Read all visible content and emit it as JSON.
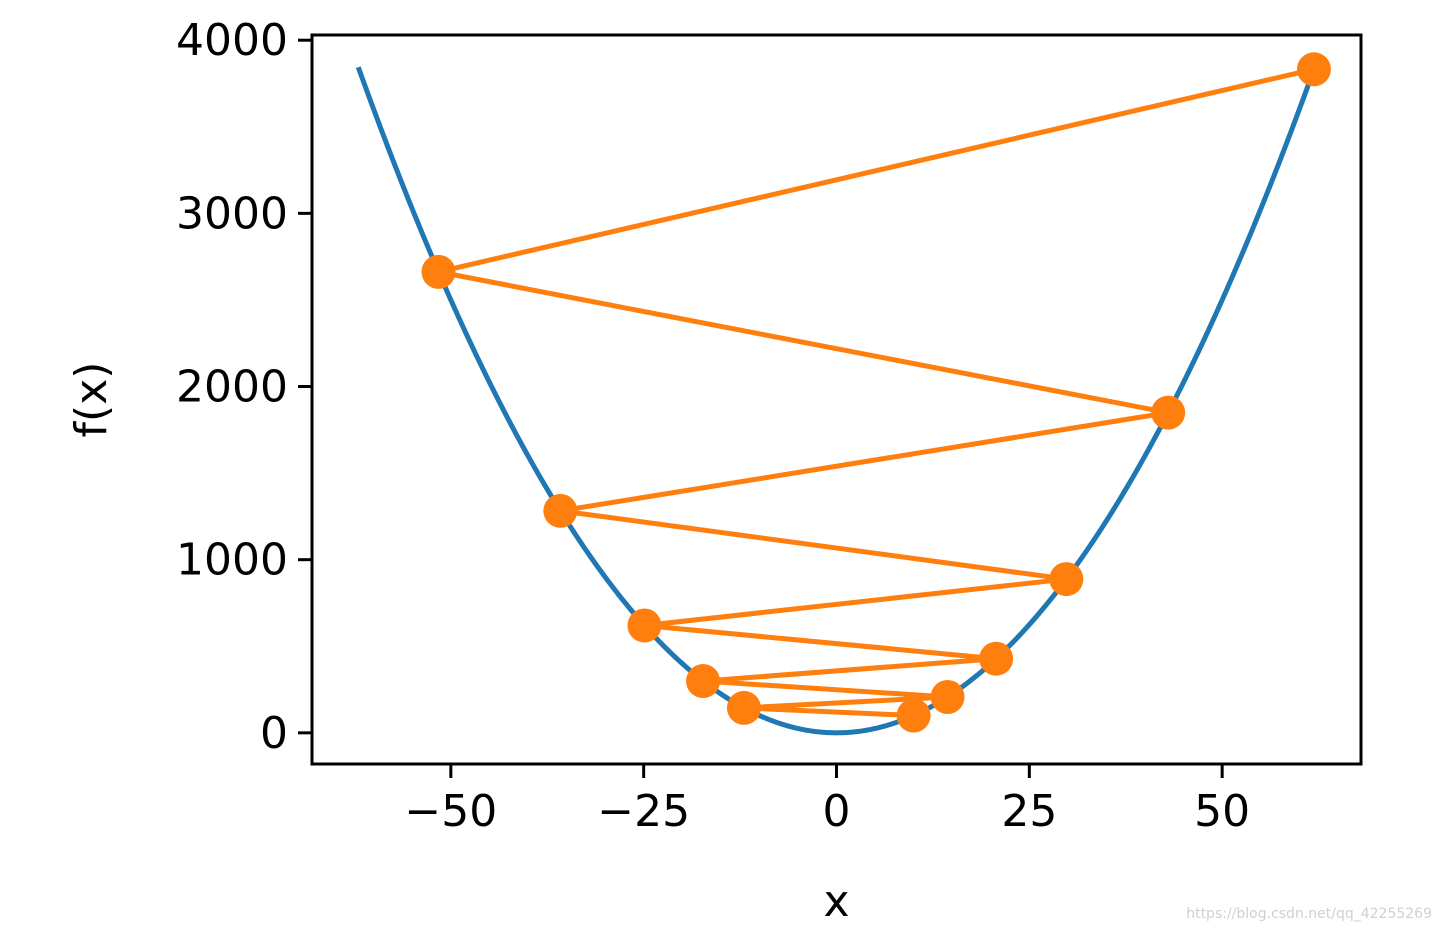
{
  "chart_data": {
    "type": "line",
    "title": "",
    "xlabel": "x",
    "ylabel": "f(x)",
    "xlim": [
      -68,
      68
    ],
    "ylim": [
      -180,
      4030
    ],
    "xticks": [
      -50,
      -25,
      0,
      25,
      50
    ],
    "xtick_labels": [
      "−50",
      "−25",
      "0",
      "25",
      "50"
    ],
    "yticks": [
      0,
      1000,
      2000,
      3000,
      4000
    ],
    "ytick_labels": [
      "0",
      "1000",
      "2000",
      "3000",
      "4000"
    ],
    "grid": false,
    "series": [
      {
        "color": "#1f77b4",
        "kind": "curve",
        "function": "x^2",
        "x_range": [
          -62,
          62
        ]
      },
      {
        "color": "#ff7f0e",
        "kind": "line-markers",
        "x": [
          61.9,
          -51.6,
          43.0,
          -35.8,
          29.8,
          -24.9,
          20.7,
          -17.3,
          14.4,
          -12.0,
          10.0
        ],
        "y": [
          3832,
          2662,
          1849,
          1282,
          888,
          620,
          428,
          299,
          207,
          144,
          100
        ]
      }
    ],
    "colors": {
      "curve": "#1f77b4",
      "trajectory": "#ff7f0e"
    }
  },
  "watermark": "https://blog.csdn.net/qq_42255269"
}
